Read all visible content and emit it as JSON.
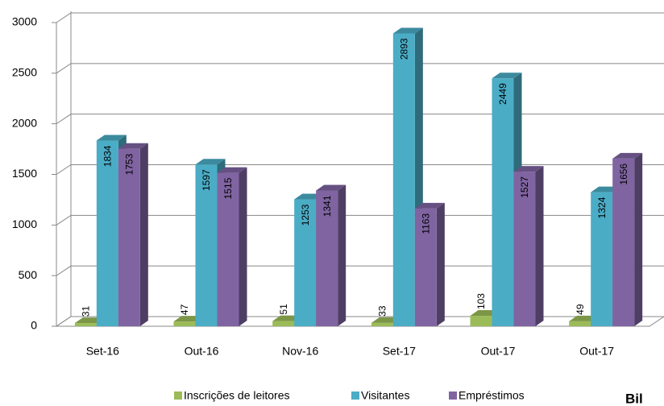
{
  "chart_data": {
    "type": "bar3d",
    "categories": [
      "Set-16",
      "Out-16",
      "Nov-16",
      "Set-17",
      "Out-17",
      "Out-17"
    ],
    "series": [
      {
        "name": "Inscrições de leitores",
        "color": "#9bbb59",
        "values": [
          31,
          47,
          51,
          33,
          103,
          49
        ]
      },
      {
        "name": "Visitantes",
        "color": "#4bacc6",
        "values": [
          1834,
          1597,
          1253,
          2893,
          2449,
          1324
        ]
      },
      {
        "name": "Empréstimos",
        "color": "#8064a2",
        "values": [
          1753,
          1515,
          1341,
          1163,
          1527,
          1656
        ]
      }
    ],
    "ylim": [
      0,
      3000
    ],
    "yticks": [
      0,
      500,
      1000,
      1500,
      2000,
      2500,
      3000
    ],
    "grid": true,
    "legend": "bottom",
    "annotation": "Bil"
  }
}
